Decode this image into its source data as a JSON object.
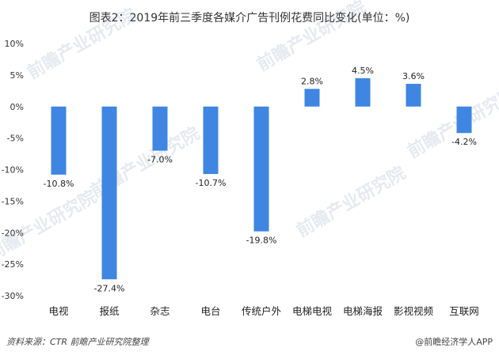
{
  "chart_data": {
    "type": "bar",
    "title": "图表2：2019年前三季度各媒介广告刊例花费同比变化(单位：%)",
    "categories": [
      "电视",
      "报纸",
      "杂志",
      "电台",
      "传统户外",
      "电梯电视",
      "电梯海报",
      "影视视频",
      "互联网"
    ],
    "values": [
      -10.8,
      -27.4,
      -7.0,
      -10.7,
      -19.8,
      2.8,
      4.5,
      3.6,
      -4.2
    ],
    "data_labels": [
      "-10.8%",
      "-27.4%",
      "-7.0%",
      "-10.7%",
      "-19.8%",
      "2.8%",
      "4.5%",
      "3.6%",
      "-4.2%"
    ],
    "yticks": [
      10,
      5,
      0,
      -5,
      -10,
      -15,
      -20,
      -25,
      -30
    ],
    "ytick_labels": [
      "10%",
      "5%",
      "0%",
      "-5%",
      "-10%",
      "-15%",
      "-20%",
      "-25%",
      "-30%"
    ],
    "ylim": [
      -30,
      10
    ],
    "xlabel": "",
    "ylabel": "",
    "grid": false,
    "bar_color": "#3e86e2"
  },
  "footer": {
    "source": "资料来源：CTR 前瞻产业研究院整理",
    "brand": "@前瞻经济学人APP"
  },
  "watermark": {
    "text": "前瞻产业研究院"
  }
}
